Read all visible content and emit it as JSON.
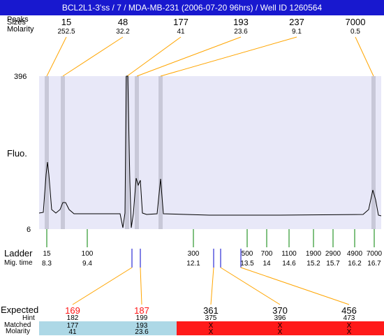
{
  "title": "BCL2L1-3'ss / 7 / MDA-MB-231 (2006-07-20 96hrs) / Well ID 1260564",
  "row_labels": {
    "peaks_overlap": "Peaks",
    "sizes_overlap": "Sizes",
    "molarity": "Molarity",
    "fluo": "Fluo.",
    "ladder": "Ladder",
    "mig_time": "Mig. time",
    "expected": "Expected",
    "hint": "Hint",
    "matched": "Matched",
    "molarity_bottom": "Molarity"
  },
  "y_axis": {
    "max": "396",
    "min": "6"
  },
  "peaks": [
    {
      "size": "15",
      "molarity": "252.5"
    },
    {
      "size": "48",
      "molarity": "32.2"
    },
    {
      "size": "177",
      "molarity": "41"
    },
    {
      "size": "193",
      "molarity": "23.6"
    },
    {
      "size": "237",
      "molarity": "9.1"
    },
    {
      "size": "7000",
      "molarity": "0.5"
    }
  ],
  "ladder": [
    {
      "size": "15",
      "time": "8.3"
    },
    {
      "size": "100",
      "time": "9.4"
    },
    {
      "size": "300",
      "time": "12.1"
    },
    {
      "size": "500",
      "time": "13.5"
    },
    {
      "size": "700",
      "time": "14"
    },
    {
      "size": "1100",
      "time": "14.6"
    },
    {
      "size": "1900",
      "time": "15.2"
    },
    {
      "size": "2900",
      "time": "15.7"
    },
    {
      "size": "4900",
      "time": "16.2"
    },
    {
      "size": "7000",
      "time": "16.7"
    }
  ],
  "expected": [
    {
      "expected": "169",
      "hint": "182",
      "matched": "177",
      "molarity": "41",
      "status": "matched"
    },
    {
      "expected": "187",
      "hint": "199",
      "matched": "193",
      "molarity": "23.6",
      "status": "matched"
    },
    {
      "expected": "361",
      "hint": "375",
      "matched": "X",
      "molarity": "X",
      "status": "missing"
    },
    {
      "expected": "370",
      "hint": "396",
      "matched": "X",
      "molarity": "X",
      "status": "missing"
    },
    {
      "expected": "456",
      "hint": "473",
      "matched": "X",
      "molarity": "X",
      "status": "missing"
    }
  ],
  "colors": {
    "title_bg": "#1818cf",
    "plot_bg": "#e8e8f8",
    "peak_band": "#c8c8d8",
    "connector": "#ffa500",
    "ladder_tick": "#008000",
    "marker": "#0000cc",
    "matched_bg": "#add8e6",
    "missing_bg": "#ff1a1a",
    "expected_matched_text": "#ff1414"
  }
}
